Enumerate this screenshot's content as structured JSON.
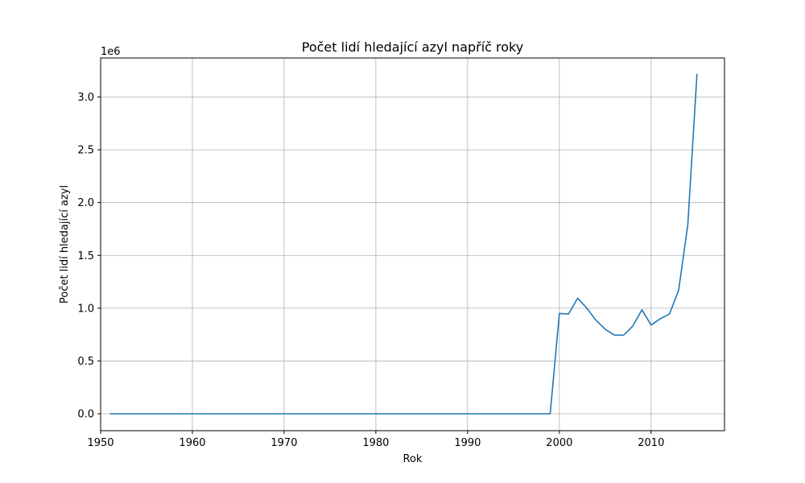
{
  "chart_data": {
    "type": "line",
    "title": "Počet lidí hledající azyl napříč roky",
    "xlabel": "Rok",
    "ylabel": "Počet lidí hledající azyl",
    "y_offset_label": "1e6",
    "xlim": [
      1950,
      2018
    ],
    "ylim": [
      -0.16,
      3.37
    ],
    "x_ticks": [
      1950,
      1960,
      1970,
      1980,
      1990,
      2000,
      2010
    ],
    "y_ticks": [
      0.0,
      0.5,
      1.0,
      1.5,
      2.0,
      2.5,
      3.0
    ],
    "y_tick_labels": [
      "0.0",
      "0.5",
      "1.0",
      "1.5",
      "2.0",
      "2.5",
      "3.0"
    ],
    "grid": true,
    "series_color": "#1f77b4",
    "series": [
      {
        "x": [
          1951,
          1952,
          1953,
          1954,
          1955,
          1956,
          1957,
          1958,
          1959,
          1960,
          1961,
          1962,
          1963,
          1964,
          1965,
          1966,
          1967,
          1968,
          1969,
          1970,
          1971,
          1972,
          1973,
          1974,
          1975,
          1976,
          1977,
          1978,
          1979,
          1980,
          1981,
          1982,
          1983,
          1984,
          1985,
          1986,
          1987,
          1988,
          1989,
          1990,
          1991,
          1992,
          1993,
          1994,
          1995,
          1996,
          1997,
          1998,
          1999,
          2000,
          2001,
          2002,
          2003,
          2004,
          2005,
          2006,
          2007,
          2008,
          2009,
          2010,
          2011,
          2012,
          2013,
          2014,
          2015
        ],
        "y": [
          0,
          0,
          0,
          0,
          0,
          0,
          0,
          0,
          0,
          0,
          0,
          0,
          0,
          0,
          0,
          0,
          0,
          0,
          0,
          0,
          0,
          0,
          0,
          0,
          0,
          0,
          0,
          0,
          0,
          0,
          0,
          0,
          0,
          0,
          0,
          0,
          0,
          0,
          0,
          0,
          0,
          0,
          0,
          0,
          0,
          0,
          0,
          0,
          0,
          0.95,
          0.945,
          1.095,
          1.0,
          0.885,
          0.8,
          0.745,
          0.745,
          0.83,
          0.985,
          0.84,
          0.9,
          0.945,
          1.17,
          1.79,
          3.22
        ]
      }
    ]
  }
}
